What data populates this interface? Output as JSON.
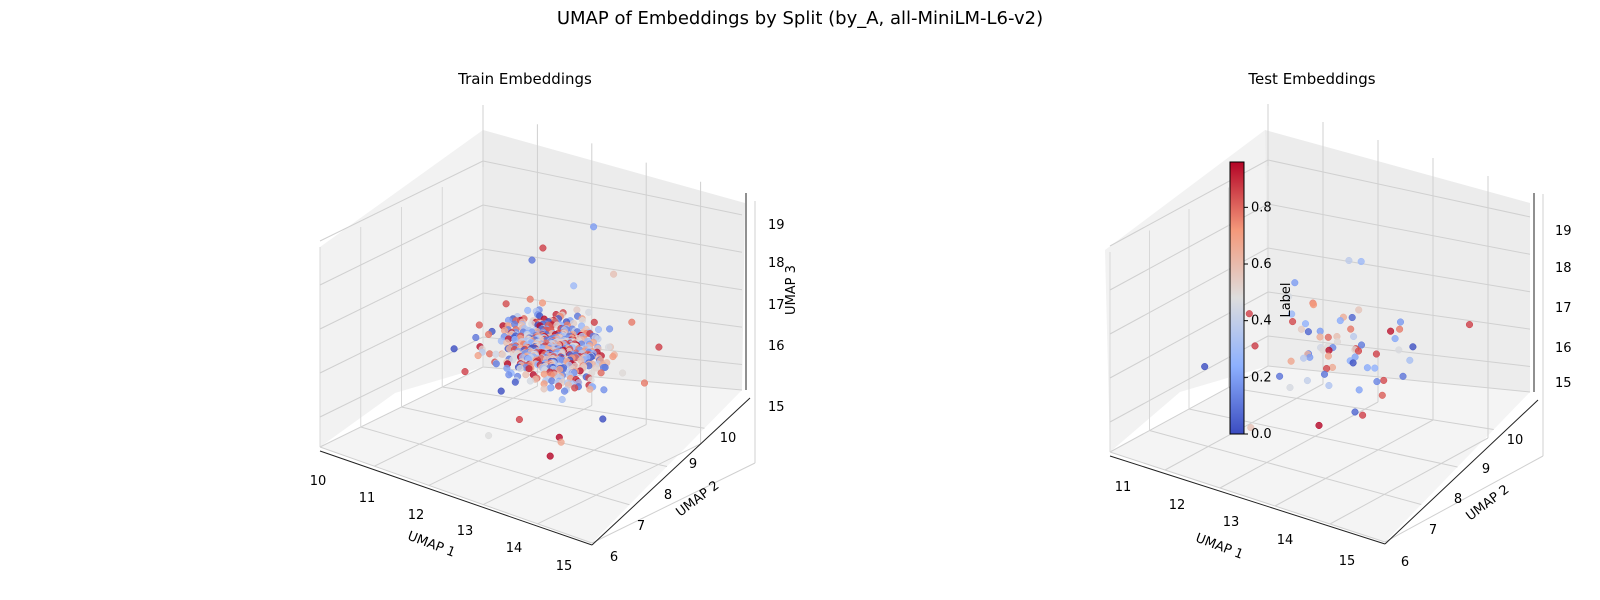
{
  "suptitle": "UMAP of Embeddings by Split (by_A, all-MiniLM-L6-v2)",
  "colors": {
    "low": "#3b4cc0",
    "mid": "#dddddd",
    "high": "#b40426"
  },
  "chart_data": [
    {
      "type": "scatter",
      "subtype": "3d",
      "title": "Train Embeddings",
      "xlabel": "UMAP 1",
      "ylabel": "UMAP 2",
      "zlabel": "UMAP 3",
      "xlim": [
        10,
        15
      ],
      "ylim": [
        6,
        10.5
      ],
      "zlim": [
        14.8,
        19.5
      ],
      "xticks": [
        10,
        11,
        12,
        13,
        14,
        15
      ],
      "yticks": [
        6,
        7,
        8,
        9,
        10
      ],
      "zticks": [
        15,
        16,
        17,
        18,
        19
      ],
      "color_by": "Label",
      "grid": true,
      "n_points": 650,
      "points": [
        [
          11.0,
          8.2,
          16.4,
          0.0
        ],
        [
          11.2,
          8.5,
          16.6,
          0.1
        ],
        [
          11.4,
          7.9,
          16.2,
          0.9
        ],
        [
          11.6,
          8.8,
          17.0,
          0.2
        ],
        [
          11.8,
          9.1,
          17.4,
          0.8
        ],
        [
          12.0,
          8.0,
          16.0,
          0.0
        ],
        [
          12.2,
          8.6,
          16.9,
          0.7
        ],
        [
          12.4,
          9.4,
          17.8,
          0.3
        ],
        [
          12.6,
          7.6,
          15.8,
          0.9
        ],
        [
          12.8,
          8.9,
          17.2,
          0.1
        ],
        [
          13.0,
          9.6,
          18.2,
          0.6
        ],
        [
          13.2,
          7.8,
          15.6,
          1.0
        ],
        [
          13.4,
          8.4,
          16.5,
          0.4
        ],
        [
          13.6,
          9.2,
          17.6,
          0.8
        ],
        [
          13.8,
          8.1,
          16.1,
          0.0
        ],
        [
          12.1,
          9.0,
          18.6,
          0.9
        ],
        [
          12.5,
          9.8,
          18.9,
          0.2
        ],
        [
          12.9,
          8.3,
          15.2,
          0.7
        ],
        [
          13.3,
          7.4,
          15.4,
          1.0
        ],
        [
          12.3,
          7.2,
          15.5,
          0.5
        ],
        [
          11.5,
          9.6,
          17.9,
          0.1
        ],
        [
          13.9,
          9.5,
          17.1,
          0.9
        ],
        [
          14.1,
          8.8,
          16.7,
          0.8
        ]
      ]
    },
    {
      "type": "scatter",
      "subtype": "3d",
      "title": "Test Embeddings",
      "xlabel": "UMAP 1",
      "ylabel": "UMAP 2",
      "zlabel": "",
      "xlim": [
        10.7,
        15.2
      ],
      "ylim": [
        6,
        10.5
      ],
      "zlim": [
        14.8,
        19.8
      ],
      "xticks": [
        11,
        12,
        13,
        14,
        15
      ],
      "yticks": [
        6,
        7,
        8,
        9,
        10
      ],
      "zticks": [
        15,
        16,
        17,
        18,
        19
      ],
      "color_by": "Label",
      "grid": true,
      "n_points": 70,
      "points": [
        [
          11.1,
          8.0,
          16.0,
          0.0
        ],
        [
          11.6,
          8.4,
          17.2,
          0.9
        ],
        [
          12.0,
          9.0,
          17.8,
          0.2
        ],
        [
          12.4,
          8.2,
          16.6,
          0.7
        ],
        [
          12.8,
          9.5,
          18.4,
          0.3
        ],
        [
          13.2,
          7.6,
          15.8,
          1.0
        ],
        [
          13.6,
          9.2,
          17.4,
          0.8
        ],
        [
          14.0,
          8.6,
          16.8,
          0.1
        ],
        [
          14.4,
          9.8,
          17.6,
          0.9
        ],
        [
          12.2,
          7.4,
          15.4,
          0.6
        ],
        [
          13.0,
          8.8,
          18.8,
          0.4
        ],
        [
          13.8,
          7.8,
          16.2,
          0.9
        ]
      ]
    }
  ],
  "colorbar": {
    "label": "Label",
    "range": [
      0.0,
      0.96
    ],
    "ticks": [
      "0.0",
      "0.2",
      "0.4",
      "0.6",
      "0.8"
    ]
  }
}
